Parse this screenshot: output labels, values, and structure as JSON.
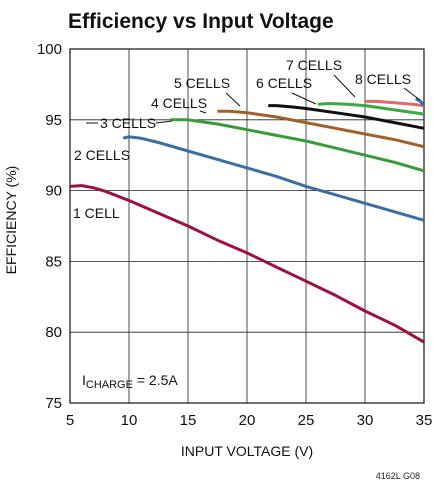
{
  "chart_data": {
    "type": "line",
    "title": "Efficiency vs Input Voltage",
    "xlabel": "INPUT VOLTAGE (V)",
    "ylabel": "EFFICIENCY (%)",
    "xlim": [
      5,
      35
    ],
    "ylim": [
      75,
      100
    ],
    "xticks": [
      5,
      10,
      15,
      20,
      25,
      30,
      35
    ],
    "yticks": [
      75,
      80,
      85,
      90,
      95,
      100
    ],
    "grid": true,
    "annotation": {
      "main": "I",
      "sub": "CHARGE",
      "rest": " = 2.5A"
    },
    "figure_id": "4162L G08",
    "series": [
      {
        "name": "1 CELL",
        "color": "#9b1045",
        "x": [
          5,
          6,
          7,
          8,
          10,
          12.5,
          15,
          17.5,
          20,
          22.5,
          25,
          27.5,
          30,
          32.5,
          35
        ],
        "y": [
          90.3,
          90.35,
          90.2,
          89.95,
          89.3,
          88.4,
          87.5,
          86.5,
          85.6,
          84.6,
          83.6,
          82.6,
          81.5,
          80.5,
          79.3
        ]
      },
      {
        "name": "2 CELLS",
        "color": "#3a6ea5",
        "x": [
          9.5,
          10,
          11,
          12.5,
          15,
          17.5,
          20,
          22.5,
          25,
          27.5,
          30,
          32.5,
          35
        ],
        "y": [
          93.7,
          93.8,
          93.7,
          93.4,
          92.8,
          92.2,
          91.6,
          91.0,
          90.3,
          89.7,
          89.1,
          88.5,
          87.9
        ]
      },
      {
        "name": "3 CELLS",
        "color": "#3a9a3a",
        "x": [
          13.5,
          15,
          17.5,
          20,
          22.5,
          25,
          27.5,
          30,
          32.5,
          35
        ],
        "y": [
          95.0,
          95.0,
          94.7,
          94.3,
          93.9,
          93.5,
          93.0,
          92.5,
          92.0,
          91.4
        ]
      },
      {
        "name": "4 CELLS",
        "color": "#a0622a",
        "x": [
          17.5,
          18.5,
          20,
          22.5,
          25,
          27.5,
          30,
          32.5,
          35
        ],
        "y": [
          95.6,
          95.6,
          95.5,
          95.2,
          94.8,
          94.4,
          94.0,
          93.6,
          93.1
        ]
      },
      {
        "name": "5 CELLS",
        "color": "#111111",
        "x": [
          21.8,
          22.5,
          24,
          25,
          27.5,
          30,
          32.5,
          35
        ],
        "y": [
          96.0,
          96.0,
          95.9,
          95.8,
          95.5,
          95.2,
          94.8,
          94.4
        ]
      },
      {
        "name": "6 CELLS",
        "color": "#3aaa44",
        "x": [
          26,
          27,
          28.5,
          30,
          32.5,
          35
        ],
        "y": [
          96.1,
          96.15,
          96.1,
          96.0,
          95.7,
          95.4
        ]
      },
      {
        "name": "7 CELLS",
        "color": "#e06a6a",
        "x": [
          30,
          31,
          32.5,
          34,
          35
        ],
        "y": [
          96.3,
          96.3,
          96.2,
          96.1,
          96.0
        ]
      },
      {
        "name": "8 CELLS",
        "color": "#3a6ea5",
        "x": [
          34.3,
          34.7,
          35
        ],
        "y": [
          96.5,
          96.3,
          96.0
        ]
      }
    ]
  }
}
